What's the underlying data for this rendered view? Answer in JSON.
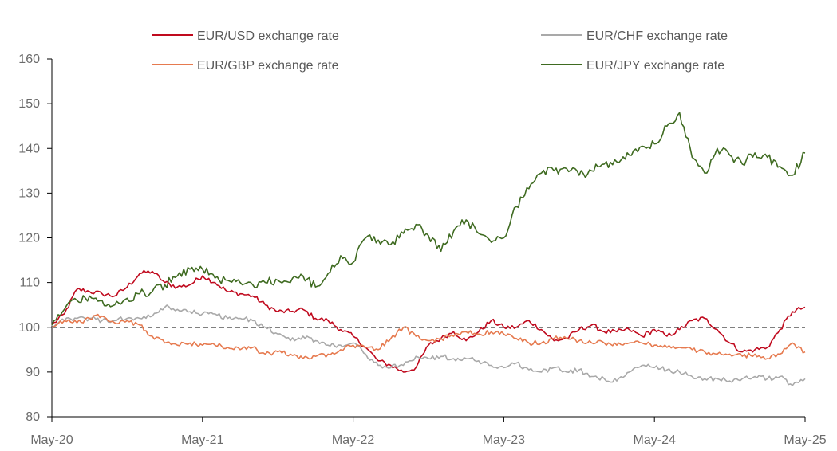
{
  "chart_data": {
    "type": "line",
    "title": "",
    "xlabel": "",
    "ylabel": "",
    "x_tick_labels": [
      "May-20",
      "May-21",
      "May-22",
      "May-23",
      "May-24",
      "May-25"
    ],
    "y_ticks": [
      80,
      90,
      100,
      110,
      120,
      130,
      140,
      150,
      160
    ],
    "ylim": [
      80,
      160
    ],
    "xlim": [
      "May-20",
      "May-25"
    ],
    "grid": false,
    "legend_position": "top",
    "reference_line": {
      "y": 100,
      "style": "dashed",
      "color": "#000000"
    },
    "series": [
      {
        "name": "EUR/USD exchange rate",
        "color": "#c00a1e",
        "x": [
          "May-20",
          "Jun-20",
          "Jul-20",
          "Aug-20",
          "Sep-20",
          "Oct-20",
          "Nov-20",
          "Dec-20",
          "Jan-21",
          "Feb-21",
          "Mar-21",
          "Apr-21",
          "May-21",
          "Jun-21",
          "Jul-21",
          "Aug-21",
          "Sep-21",
          "Oct-21",
          "Nov-21",
          "Dec-21",
          "Jan-22",
          "Feb-22",
          "Mar-22",
          "Apr-22",
          "May-22",
          "Jun-22",
          "Jul-22",
          "Aug-22",
          "Sep-22",
          "Oct-22",
          "Nov-22",
          "Dec-22",
          "Jan-23",
          "Feb-23",
          "Mar-23",
          "Apr-23",
          "May-23",
          "Jun-23",
          "Jul-23",
          "Aug-23",
          "Sep-23",
          "Oct-23",
          "Nov-23",
          "Dec-23",
          "Jan-24",
          "Feb-24",
          "Mar-24",
          "Apr-24",
          "May-24",
          "Jun-24",
          "Jul-24",
          "Aug-24",
          "Sep-24",
          "Oct-24",
          "Nov-24",
          "Dec-24",
          "Jan-25",
          "Feb-25",
          "Mar-25",
          "Apr-25",
          "May-25"
        ],
        "values": [
          100.5,
          103.0,
          108.5,
          108.0,
          107.5,
          107.0,
          109.0,
          112.0,
          112.5,
          110.0,
          109.0,
          109.5,
          111.5,
          110.0,
          108.0,
          107.5,
          107.0,
          105.0,
          103.5,
          103.5,
          104.0,
          102.0,
          101.5,
          99.5,
          98.0,
          95.5,
          92.5,
          91.5,
          90.0,
          91.0,
          96.0,
          97.5,
          99.0,
          97.0,
          99.0,
          101.5,
          100.0,
          100.0,
          101.5,
          99.5,
          97.0,
          97.5,
          99.5,
          100.5,
          99.0,
          99.0,
          99.5,
          98.0,
          99.5,
          98.0,
          99.5,
          101.5,
          102.0,
          99.5,
          96.5,
          94.5,
          95.0,
          95.5,
          99.5,
          103.5,
          104.5
        ]
      },
      {
        "name": "EUR/CHF exchange rate",
        "color": "#a9a9a9",
        "x": [
          "May-20",
          "Jun-20",
          "Jul-20",
          "Aug-20",
          "Sep-20",
          "Oct-20",
          "Nov-20",
          "Dec-20",
          "Jan-21",
          "Feb-21",
          "Mar-21",
          "Apr-21",
          "May-21",
          "Jun-21",
          "Jul-21",
          "Aug-21",
          "Sep-21",
          "Oct-21",
          "Nov-21",
          "Dec-21",
          "Jan-22",
          "Feb-22",
          "Mar-22",
          "Apr-22",
          "May-22",
          "Jun-22",
          "Jul-22",
          "Aug-22",
          "Sep-22",
          "Oct-22",
          "Nov-22",
          "Dec-22",
          "Jan-23",
          "Feb-23",
          "Mar-23",
          "Apr-23",
          "May-23",
          "Jun-23",
          "Jul-23",
          "Aug-23",
          "Sep-23",
          "Oct-23",
          "Nov-23",
          "Dec-23",
          "Jan-24",
          "Feb-24",
          "Mar-24",
          "Apr-24",
          "May-24",
          "Jun-24",
          "Jul-24",
          "Aug-24",
          "Sep-24",
          "Oct-24",
          "Nov-24",
          "Dec-24",
          "Jan-25",
          "Feb-25",
          "Mar-25",
          "Apr-25",
          "May-25"
        ],
        "values": [
          100.5,
          101.5,
          102.0,
          102.0,
          101.5,
          101.5,
          102.0,
          102.0,
          102.5,
          104.5,
          104.0,
          103.5,
          103.0,
          103.0,
          102.0,
          102.0,
          101.5,
          100.0,
          98.5,
          97.0,
          98.0,
          97.0,
          96.0,
          96.0,
          96.5,
          94.0,
          91.5,
          91.0,
          91.5,
          93.5,
          93.0,
          93.5,
          93.0,
          93.0,
          92.5,
          91.5,
          91.0,
          92.0,
          90.5,
          90.0,
          91.0,
          90.0,
          90.5,
          89.0,
          88.5,
          88.0,
          90.0,
          91.5,
          91.0,
          90.5,
          90.0,
          89.0,
          88.5,
          88.5,
          88.0,
          88.5,
          89.0,
          88.5,
          89.0,
          87.0,
          88.5
        ]
      },
      {
        "name": "EUR/GBP exchange rate",
        "color": "#e67a4f",
        "x": [
          "May-20",
          "Jun-20",
          "Jul-20",
          "Aug-20",
          "Sep-20",
          "Oct-20",
          "Nov-20",
          "Dec-20",
          "Jan-21",
          "Feb-21",
          "Mar-21",
          "Apr-21",
          "May-21",
          "Jun-21",
          "Jul-21",
          "Aug-21",
          "Sep-21",
          "Oct-21",
          "Nov-21",
          "Dec-21",
          "Jan-22",
          "Feb-22",
          "Mar-22",
          "Apr-22",
          "May-22",
          "Jun-22",
          "Jul-22",
          "Aug-22",
          "Sep-22",
          "Oct-22",
          "Nov-22",
          "Dec-22",
          "Jan-23",
          "Feb-23",
          "Mar-23",
          "Apr-23",
          "May-23",
          "Jun-23",
          "Jul-23",
          "Aug-23",
          "Sep-23",
          "Oct-23",
          "Nov-23",
          "Dec-23",
          "Jan-24",
          "Feb-24",
          "Mar-24",
          "Apr-24",
          "May-24",
          "Jun-24",
          "Jul-24",
          "Aug-24",
          "Sep-24",
          "Oct-24",
          "Nov-24",
          "Dec-24",
          "Jan-25",
          "Feb-25",
          "Mar-25",
          "Apr-25",
          "May-25"
        ],
        "values": [
          100.0,
          101.5,
          101.0,
          102.0,
          102.5,
          101.0,
          101.5,
          100.5,
          98.0,
          96.5,
          96.0,
          96.5,
          96.0,
          96.0,
          95.5,
          95.0,
          95.5,
          94.0,
          94.5,
          94.0,
          93.0,
          93.5,
          94.0,
          95.0,
          96.0,
          95.5,
          95.0,
          97.5,
          100.0,
          98.0,
          97.0,
          97.5,
          98.0,
          99.0,
          98.5,
          99.0,
          98.5,
          97.5,
          96.5,
          96.5,
          97.5,
          97.5,
          97.0,
          96.5,
          96.5,
          96.0,
          96.5,
          96.5,
          96.0,
          95.5,
          95.5,
          95.0,
          94.5,
          94.0,
          94.0,
          93.5,
          94.0,
          93.0,
          94.0,
          96.5,
          94.5
        ]
      },
      {
        "name": "EUR/JPY exchange rate",
        "color": "#3f6b21",
        "x": [
          "May-20",
          "Jun-20",
          "Jul-20",
          "Aug-20",
          "Sep-20",
          "Oct-20",
          "Nov-20",
          "Dec-20",
          "Jan-21",
          "Feb-21",
          "Mar-21",
          "Apr-21",
          "May-21",
          "Jun-21",
          "Jul-21",
          "Aug-21",
          "Sep-21",
          "Oct-21",
          "Nov-21",
          "Dec-21",
          "Jan-22",
          "Feb-22",
          "Mar-22",
          "Apr-22",
          "May-22",
          "Jun-22",
          "Jul-22",
          "Aug-22",
          "Sep-22",
          "Oct-22",
          "Nov-22",
          "Dec-22",
          "Jan-23",
          "Feb-23",
          "Mar-23",
          "Apr-23",
          "May-23",
          "Jun-23",
          "Jul-23",
          "Aug-23",
          "Sep-23",
          "Oct-23",
          "Nov-23",
          "Dec-23",
          "Jan-24",
          "Feb-24",
          "Mar-24",
          "Apr-24",
          "May-24",
          "Jun-24",
          "Jul-24",
          "Aug-24",
          "Sep-24",
          "Oct-24",
          "Nov-24",
          "Dec-24",
          "Jan-25",
          "Feb-25",
          "Mar-25",
          "Apr-25",
          "May-25"
        ],
        "values": [
          100.5,
          104.0,
          106.0,
          107.0,
          106.0,
          105.0,
          106.5,
          107.5,
          108.0,
          109.5,
          111.5,
          113.0,
          113.0,
          111.0,
          110.5,
          110.0,
          109.5,
          110.0,
          110.5,
          110.0,
          111.5,
          109.0,
          112.0,
          116.0,
          114.5,
          120.0,
          119.5,
          118.5,
          121.0,
          123.0,
          120.5,
          117.0,
          121.5,
          124.0,
          121.0,
          119.0,
          120.0,
          127.0,
          131.0,
          134.5,
          135.0,
          135.5,
          134.0,
          135.0,
          136.5,
          137.0,
          138.5,
          140.5,
          141.0,
          145.0,
          148.0,
          138.0,
          134.5,
          140.0,
          138.5,
          136.5,
          139.0,
          138.0,
          136.0,
          134.0,
          139.0
        ]
      }
    ]
  }
}
